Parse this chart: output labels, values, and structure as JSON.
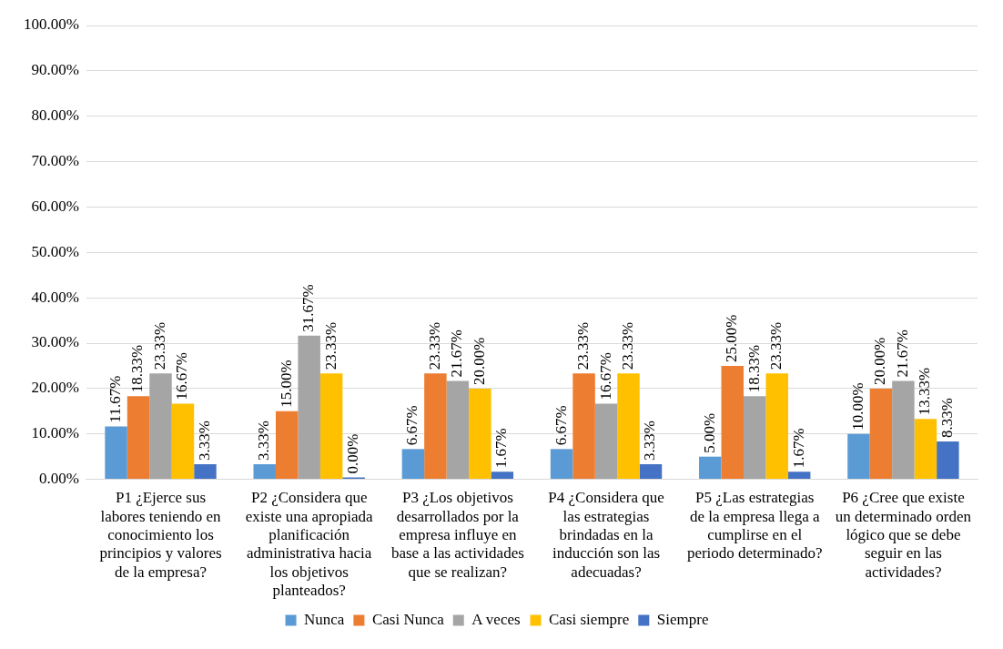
{
  "chart_data": {
    "type": "bar",
    "categories": [
      "P1 ¿Ejerce sus labores teniendo en conocimiento los principios y valores de la empresa?",
      "P2 ¿Considera que existe una apropiada planificación administrativa hacia los objetivos planteados?",
      "P3 ¿Los objetivos desarrollados por la empresa influye en base a las actividades que se realizan?",
      "P4 ¿Considera que las estrategias brindadas en la inducción son las adecuadas?",
      "P5 ¿Las estrategias de la empresa llega a cumplirse en el periodo determinado?",
      "P6 ¿Cree que existe un determinado orden lógico que se debe seguir en las actividades?"
    ],
    "series": [
      {
        "name": "Nunca",
        "color": "#5b9bd5",
        "values": [
          11.67,
          3.33,
          6.67,
          6.67,
          5.0,
          10.0
        ],
        "value_labels": [
          "11.67%",
          "3.33%",
          "6.67%",
          "6.67%",
          "5.00%",
          "10.00%"
        ]
      },
      {
        "name": "Casi Nunca",
        "color": "#ed7d31",
        "values": [
          18.33,
          15.0,
          23.33,
          23.33,
          25.0,
          20.0
        ],
        "value_labels": [
          "18.33%",
          "15.00%",
          "23.33%",
          "23.33%",
          "25.00%",
          "20.00%"
        ]
      },
      {
        "name": "A veces",
        "color": "#a5a5a5",
        "values": [
          23.33,
          31.67,
          21.67,
          16.67,
          18.33,
          21.67
        ],
        "value_labels": [
          "23.33%",
          "31.67%",
          "21.67%",
          "16.67%",
          "18.33%",
          "21.67%"
        ]
      },
      {
        "name": "Casi siempre",
        "color": "#ffc000",
        "values": [
          16.67,
          23.33,
          20.0,
          23.33,
          23.33,
          13.33
        ],
        "value_labels": [
          "16.67%",
          "23.33%",
          "20.00%",
          "23.33%",
          "23.33%",
          "13.33%"
        ]
      },
      {
        "name": "Siempre",
        "color": "#4472c4",
        "values": [
          3.33,
          0.0,
          1.67,
          3.33,
          1.67,
          8.33
        ],
        "value_labels": [
          "3.33%",
          "0.00%",
          "1.67%",
          "3.33%",
          "1.67%",
          "8.33%"
        ]
      }
    ],
    "ylim": [
      0,
      100
    ],
    "yticks": [
      {
        "value": 0,
        "label": "0.00%"
      },
      {
        "value": 10,
        "label": "10.00%"
      },
      {
        "value": 20,
        "label": "20.00%"
      },
      {
        "value": 30,
        "label": "30.00%"
      },
      {
        "value": 40,
        "label": "40.00%"
      },
      {
        "value": 50,
        "label": "50.00%"
      },
      {
        "value": 60,
        "label": "60.00%"
      },
      {
        "value": 70,
        "label": "70.00%"
      },
      {
        "value": 80,
        "label": "80.00%"
      },
      {
        "value": 90,
        "label": "90.00%"
      },
      {
        "value": 100,
        "label": "100.00%"
      }
    ],
    "grid": "y",
    "legend": "bottom"
  }
}
